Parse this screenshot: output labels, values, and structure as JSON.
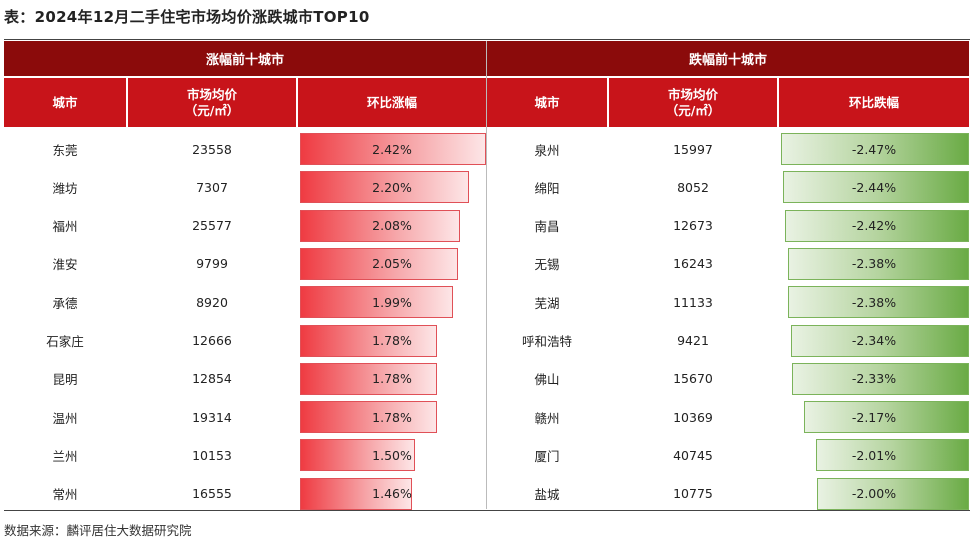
{
  "title": "表：2024年12月二手住宅市场均价涨跌城市TOP10",
  "source": "数据来源：麟评居住大数据研究院",
  "colors": {
    "group_header": "#8b0b0b",
    "column_header": "#c8141a",
    "rise_bar": "#ef3b42",
    "fall_bar": "#6aab45"
  },
  "up_table": {
    "group_label": "涨幅前十城市",
    "headers": {
      "city": "城市",
      "price_line1": "市场均价",
      "price_line2": "（元/㎡）",
      "change": "环比涨幅"
    },
    "rows": [
      {
        "city": "东莞",
        "price": "23558",
        "change": "2.42%",
        "value": 2.42
      },
      {
        "city": "潍坊",
        "price": "7307",
        "change": "2.20%",
        "value": 2.2
      },
      {
        "city": "福州",
        "price": "25577",
        "change": "2.08%",
        "value": 2.08
      },
      {
        "city": "淮安",
        "price": "9799",
        "change": "2.05%",
        "value": 2.05
      },
      {
        "city": "承德",
        "price": "8920",
        "change": "1.99%",
        "value": 1.99
      },
      {
        "city": "石家庄",
        "price": "12666",
        "change": "1.78%",
        "value": 1.78
      },
      {
        "city": "昆明",
        "price": "12854",
        "change": "1.78%",
        "value": 1.78
      },
      {
        "city": "温州",
        "price": "19314",
        "change": "1.78%",
        "value": 1.78
      },
      {
        "city": "兰州",
        "price": "10153",
        "change": "1.50%",
        "value": 1.5
      },
      {
        "city": "常州",
        "price": "16555",
        "change": "1.46%",
        "value": 1.46
      }
    ]
  },
  "down_table": {
    "group_label": "跌幅前十城市",
    "headers": {
      "city": "城市",
      "price_line1": "市场均价",
      "price_line2": "（元/㎡）",
      "change": "环比跌幅"
    },
    "rows": [
      {
        "city": "泉州",
        "price": "15997",
        "change": "-2.47%",
        "value": -2.47
      },
      {
        "city": "绵阳",
        "price": "8052",
        "change": "-2.44%",
        "value": -2.44
      },
      {
        "city": "南昌",
        "price": "12673",
        "change": "-2.42%",
        "value": -2.42
      },
      {
        "city": "无锡",
        "price": "16243",
        "change": "-2.38%",
        "value": -2.38
      },
      {
        "city": "芜湖",
        "price": "11133",
        "change": "-2.38%",
        "value": -2.38
      },
      {
        "city": "呼和浩特",
        "price": "9421",
        "change": "-2.34%",
        "value": -2.34
      },
      {
        "city": "佛山",
        "price": "15670",
        "change": "-2.33%",
        "value": -2.33
      },
      {
        "city": "赣州",
        "price": "10369",
        "change": "-2.17%",
        "value": -2.17
      },
      {
        "city": "厦门",
        "price": "40745",
        "change": "-2.01%",
        "value": -2.01
      },
      {
        "city": "盐城",
        "price": "10775",
        "change": "-2.00%",
        "value": -2.0
      }
    ]
  },
  "chart_data": {
    "type": "table",
    "title": "表：2024年12月二手住宅市场均价涨跌城市TOP10",
    "tables": [
      {
        "name": "涨幅前十城市",
        "columns": [
          "城市",
          "市场均价（元/㎡）",
          "环比涨幅"
        ],
        "categories": [
          "东莞",
          "潍坊",
          "福州",
          "淮安",
          "承德",
          "石家庄",
          "昆明",
          "温州",
          "兰州",
          "常州"
        ],
        "prices": [
          23558,
          7307,
          25577,
          9799,
          8920,
          12666,
          12854,
          19314,
          10153,
          16555
        ],
        "values": [
          2.42,
          2.2,
          2.08,
          2.05,
          1.99,
          1.78,
          1.78,
          1.78,
          1.5,
          1.46
        ]
      },
      {
        "name": "跌幅前十城市",
        "columns": [
          "城市",
          "市场均价（元/㎡）",
          "环比跌幅"
        ],
        "categories": [
          "泉州",
          "绵阳",
          "南昌",
          "无锡",
          "芜湖",
          "呼和浩特",
          "佛山",
          "赣州",
          "厦门",
          "盐城"
        ],
        "prices": [
          15997,
          8052,
          12673,
          16243,
          11133,
          9421,
          15670,
          10369,
          40745,
          10775
        ],
        "values": [
          -2.47,
          -2.44,
          -2.42,
          -2.38,
          -2.38,
          -2.34,
          -2.33,
          -2.17,
          -2.01,
          -2.0
        ]
      }
    ]
  }
}
